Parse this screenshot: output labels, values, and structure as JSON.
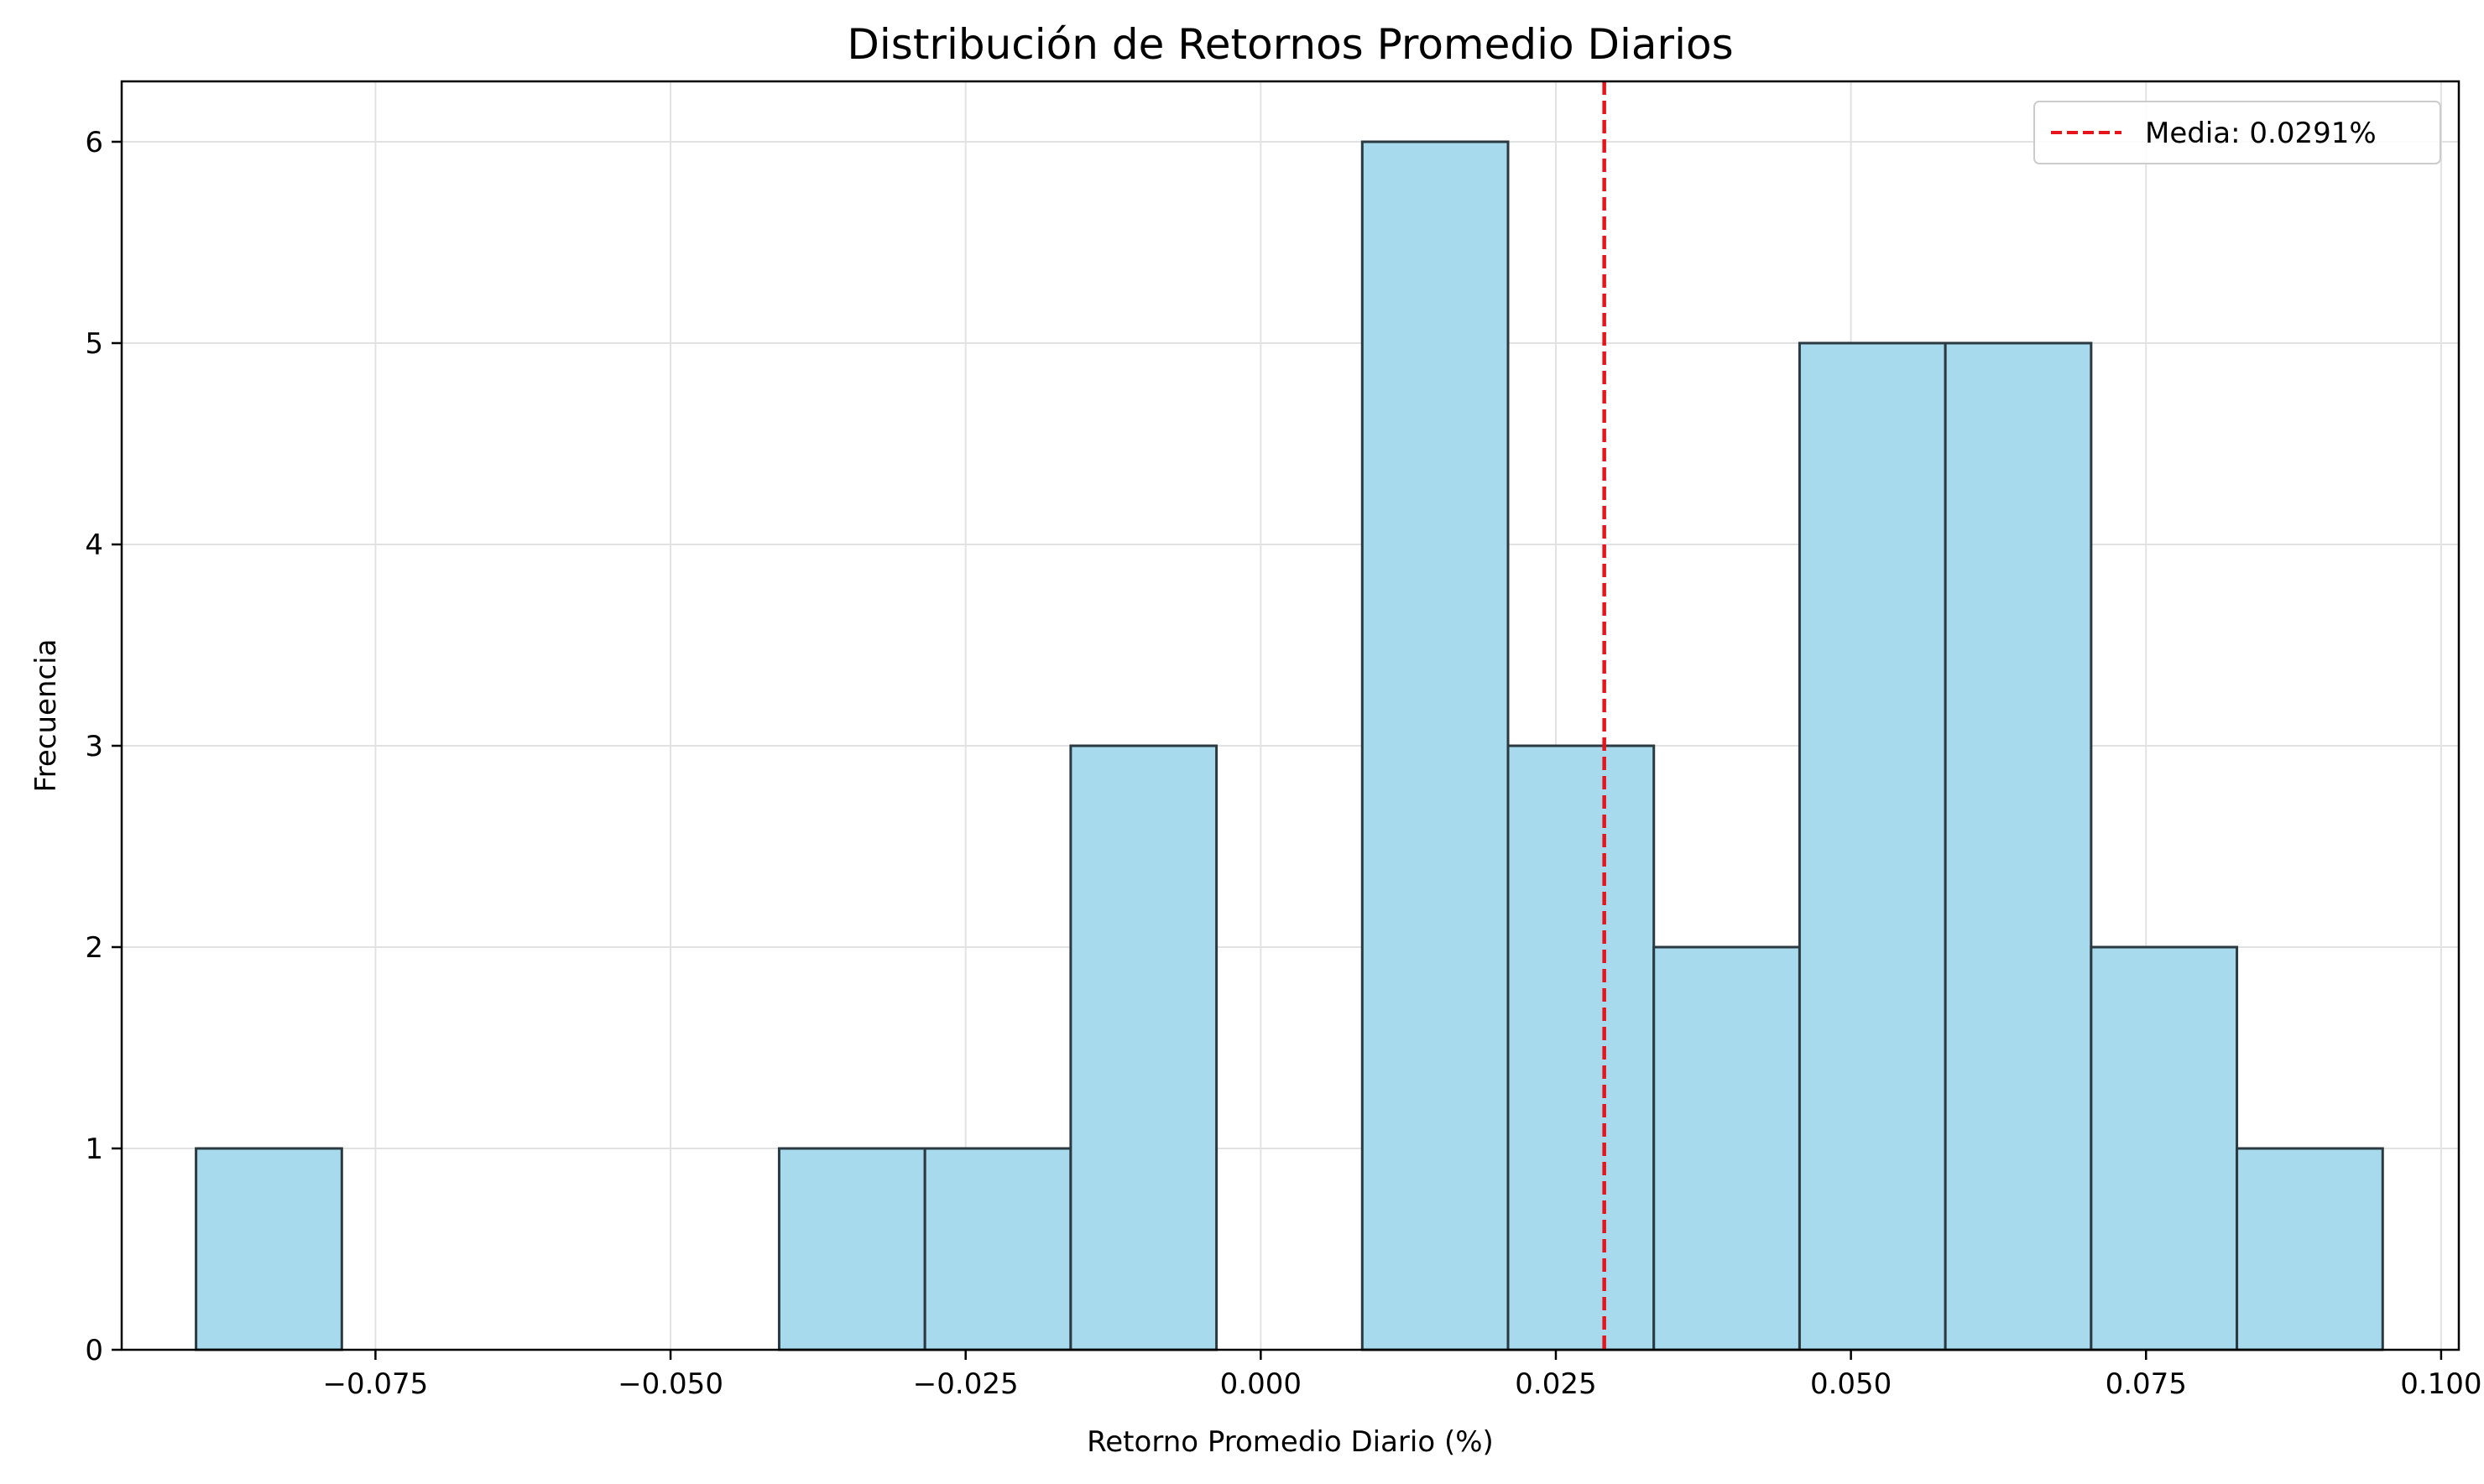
{
  "chart_data": {
    "type": "bar",
    "subtype": "histogram",
    "title": "Distribución de Retornos Promedio Diarios",
    "xlabel": "Retorno Promedio Diario (%)",
    "ylabel": "Frecuencia",
    "xlim": [
      -0.0965,
      0.1015
    ],
    "ylim": [
      0,
      6.3
    ],
    "bin_start": -0.0902,
    "bin_width": 0.01235,
    "values": [
      1,
      0,
      0,
      0,
      1,
      1,
      3,
      0,
      6,
      3,
      2,
      5,
      5,
      2,
      1
    ],
    "x_ticks": [
      -0.075,
      -0.05,
      -0.025,
      0.0,
      0.025,
      0.05,
      0.075,
      0.1
    ],
    "x_tick_labels": [
      "−0.075",
      "−0.050",
      "−0.025",
      "0.000",
      "0.025",
      "0.050",
      "0.075",
      "0.100"
    ],
    "y_ticks": [
      0,
      1,
      2,
      3,
      4,
      5,
      6
    ],
    "y_tick_labels": [
      "0",
      "1",
      "2",
      "3",
      "4",
      "5",
      "6"
    ],
    "mean_line": {
      "value": 0.0291,
      "label": "Media: 0.0291%",
      "style": "dashed"
    },
    "grid": true,
    "legend": "top-right",
    "colors": {
      "bar_fill": "#a8daee",
      "bar_edge": "#2b3a40",
      "mean_line": "#e8141b",
      "grid": "#e2e2e2"
    }
  }
}
